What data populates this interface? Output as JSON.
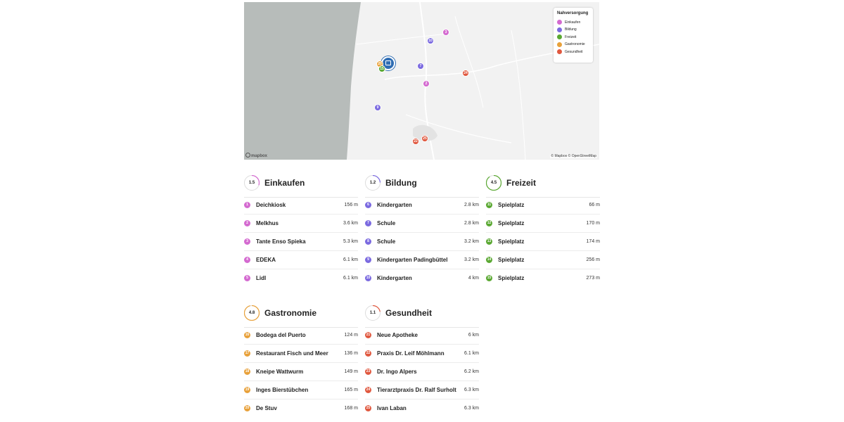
{
  "colors": {
    "einkaufen": "#d46ad0",
    "bildung": "#7b6ae0",
    "freizeit": "#5aa832",
    "gastronomie": "#e8a13a",
    "gesundheit": "#e0583f",
    "home": "#2f6db3"
  },
  "map": {
    "legend": {
      "title": "Nahversorgung",
      "items": [
        "Einkaufen",
        "Bildung",
        "Freizeit",
        "Gastronomie",
        "Gesundheit"
      ]
    },
    "logo": "mapbox",
    "attribution": "© Mapbox © OpenStreetMap",
    "markers": [
      {
        "label": "3",
        "category": "einkaufen"
      },
      {
        "label": "10",
        "category": "bildung"
      },
      {
        "label": "7",
        "category": "bildung"
      },
      {
        "label": "2",
        "category": "einkaufen"
      },
      {
        "label": "9",
        "category": "bildung"
      },
      {
        "label": "24",
        "category": "gesundheit"
      },
      {
        "label": "20",
        "category": "gastronomie"
      },
      {
        "label": "15",
        "category": "freizeit"
      },
      {
        "label": "22",
        "category": "gesundheit"
      },
      {
        "label": "25",
        "category": "gesundheit"
      }
    ]
  },
  "categories": [
    {
      "key": "einkaufen",
      "title": "Einkaufen",
      "score": "1.5",
      "items": [
        {
          "n": "1",
          "name": "Deichkiosk",
          "dist": "156 m"
        },
        {
          "n": "2",
          "name": "Melkhus",
          "dist": "3.6 km"
        },
        {
          "n": "3",
          "name": "Tante Enso Spieka",
          "dist": "5.3 km"
        },
        {
          "n": "4",
          "name": "EDEKA",
          "dist": "6.1 km"
        },
        {
          "n": "5",
          "name": "Lidl",
          "dist": "6.1 km"
        }
      ]
    },
    {
      "key": "bildung",
      "title": "Bildung",
      "score": "1.2",
      "items": [
        {
          "n": "6",
          "name": "Kindergarten",
          "dist": "2.8 km"
        },
        {
          "n": "7",
          "name": "Schule",
          "dist": "2.8 km"
        },
        {
          "n": "8",
          "name": "Schule",
          "dist": "3.2 km"
        },
        {
          "n": "9",
          "name": "Kindergarten Padingbüttel",
          "dist": "3.2 km"
        },
        {
          "n": "10",
          "name": "Kindergarten",
          "dist": "4 km"
        }
      ]
    },
    {
      "key": "freizeit",
      "title": "Freizeit",
      "score": "4.5",
      "items": [
        {
          "n": "11",
          "name": "Spielplatz",
          "dist": "66 m"
        },
        {
          "n": "12",
          "name": "Spielplatz",
          "dist": "170 m"
        },
        {
          "n": "13",
          "name": "Spielplatz",
          "dist": "174 m"
        },
        {
          "n": "14",
          "name": "Spielplatz",
          "dist": "256 m"
        },
        {
          "n": "15",
          "name": "Spielplatz",
          "dist": "273 m"
        }
      ]
    },
    {
      "key": "gastronomie",
      "title": "Gastronomie",
      "score": "4.8",
      "items": [
        {
          "n": "16",
          "name": "Bodega del Puerto",
          "dist": "124 m"
        },
        {
          "n": "17",
          "name": "Restaurant Fisch und Meer",
          "dist": "136 m"
        },
        {
          "n": "18",
          "name": "Kneipe Wattwurm",
          "dist": "149 m"
        },
        {
          "n": "19",
          "name": "Inges Bierstübchen",
          "dist": "165 m"
        },
        {
          "n": "20",
          "name": "De Stuv",
          "dist": "168 m"
        }
      ]
    },
    {
      "key": "gesundheit",
      "title": "Gesundheit",
      "score": "1.1",
      "items": [
        {
          "n": "21",
          "name": "Neue Apotheke",
          "dist": "6 km"
        },
        {
          "n": "22",
          "name": "Praxis Dr. Leif Möhlmann",
          "dist": "6.1 km"
        },
        {
          "n": "23",
          "name": "Dr. Ingo Alpers",
          "dist": "6.2 km"
        },
        {
          "n": "24",
          "name": "Tierarztpraxis Dr. Ralf Surholt",
          "dist": "6.3 km"
        },
        {
          "n": "25",
          "name": "Ivan Laban",
          "dist": "6.3 km"
        }
      ]
    }
  ]
}
